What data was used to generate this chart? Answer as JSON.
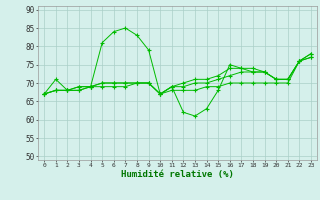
{
  "title": "",
  "xlabel": "Humidité relative (%)",
  "ylabel": "",
  "background_color": "#d5f0eb",
  "grid_color": "#aacfc8",
  "line_color": "#00bb00",
  "marker_color": "#00bb00",
  "xlim": [
    -0.5,
    23.5
  ],
  "ylim": [
    49,
    91
  ],
  "yticks": [
    50,
    55,
    60,
    65,
    70,
    75,
    80,
    85,
    90
  ],
  "xticks": [
    0,
    1,
    2,
    3,
    4,
    5,
    6,
    7,
    8,
    9,
    10,
    11,
    12,
    13,
    14,
    15,
    16,
    17,
    18,
    19,
    20,
    21,
    22,
    23
  ],
  "lines": [
    [
      67,
      71,
      68,
      68,
      69,
      81,
      84,
      85,
      83,
      79,
      67,
      69,
      62,
      61,
      63,
      68,
      75,
      74,
      74,
      73,
      71,
      71,
      76,
      77
    ],
    [
      67,
      68,
      68,
      68,
      69,
      69,
      69,
      69,
      70,
      70,
      67,
      68,
      68,
      68,
      69,
      69,
      70,
      70,
      70,
      70,
      70,
      70,
      76,
      77
    ],
    [
      67,
      68,
      68,
      69,
      69,
      70,
      70,
      70,
      70,
      70,
      67,
      69,
      69,
      70,
      70,
      71,
      72,
      73,
      73,
      73,
      71,
      71,
      76,
      78
    ],
    [
      67,
      68,
      68,
      69,
      69,
      70,
      70,
      70,
      70,
      70,
      67,
      69,
      70,
      71,
      71,
      72,
      74,
      74,
      73,
      73,
      71,
      71,
      76,
      78
    ]
  ]
}
